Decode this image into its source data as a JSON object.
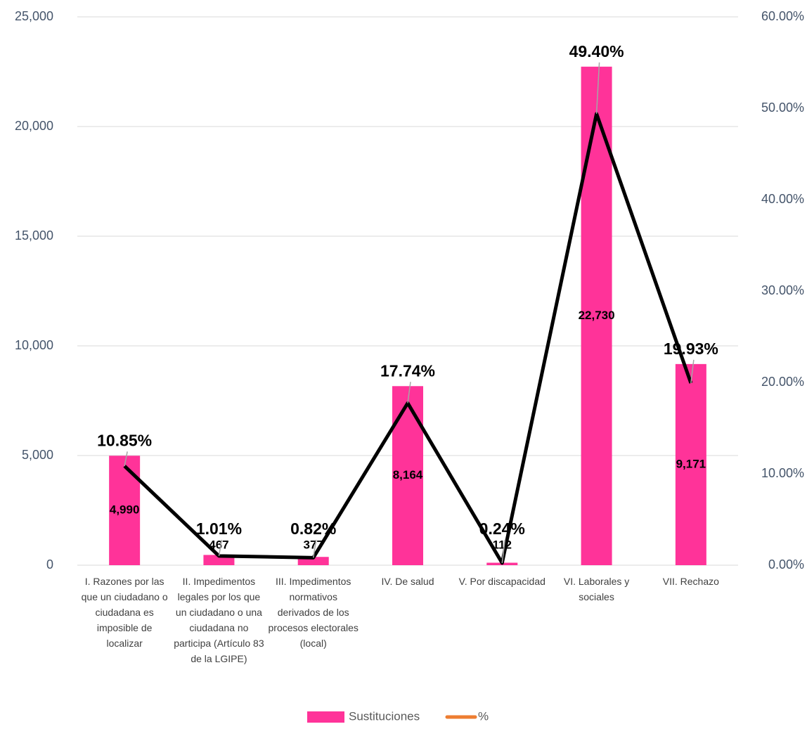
{
  "chart_data": {
    "type": "bar_line",
    "categories": [
      "I. Razones por las que un ciudadano o ciudadana es imposible de localizar",
      "II. Impedimentos legales por los que un ciudadano o una ciudadana no participa (Artículo 83 de la LGIPE)",
      "III. Impedimentos normativos derivados de los procesos electorales (local)",
      "IV. De salud",
      "V. Por discapacidad",
      "VI. Laborales y sociales",
      "VII. Rechazo"
    ],
    "series": [
      {
        "name": "Sustituciones",
        "color": "#ff3399",
        "values": [
          4990,
          467,
          377,
          8164,
          112,
          22730,
          9171
        ],
        "value_labels": [
          "4,990",
          "467",
          "377",
          "8,164",
          "112",
          "22,730",
          "9,171"
        ]
      },
      {
        "name": "%",
        "color": "#000000",
        "legend_color": "#ed7d31",
        "axis": "y2",
        "values": [
          10.85,
          1.01,
          0.82,
          17.74,
          0.24,
          49.4,
          19.93
        ],
        "value_labels": [
          "10.85%",
          "1.01%",
          "0.82%",
          "17.74%",
          "0.24%",
          "49.40%",
          "19.93%"
        ]
      }
    ],
    "ylim": [
      0,
      25000
    ],
    "yticks": [
      0,
      {
        "value": 5000,
        "label": "5,000"
      },
      {
        "value": 10000,
        "label": "10,000"
      },
      {
        "value": 15000,
        "label": "15,000"
      },
      {
        "value": 20000,
        "label": "20,000"
      },
      {
        "value": 25000,
        "label": "25,000"
      }
    ],
    "y2lim": [
      0,
      60
    ],
    "y2ticks": [
      {
        "value": 0,
        "label": "0.00%"
      },
      {
        "value": 10,
        "label": "10.00%"
      },
      {
        "value": 20,
        "label": "20.00%"
      },
      {
        "value": 30,
        "label": "30.00%"
      },
      {
        "value": 40,
        "label": "40.00%"
      },
      {
        "value": 50,
        "label": "50.00%"
      },
      {
        "value": 60,
        "label": "60.00%"
      }
    ],
    "grid": true
  }
}
